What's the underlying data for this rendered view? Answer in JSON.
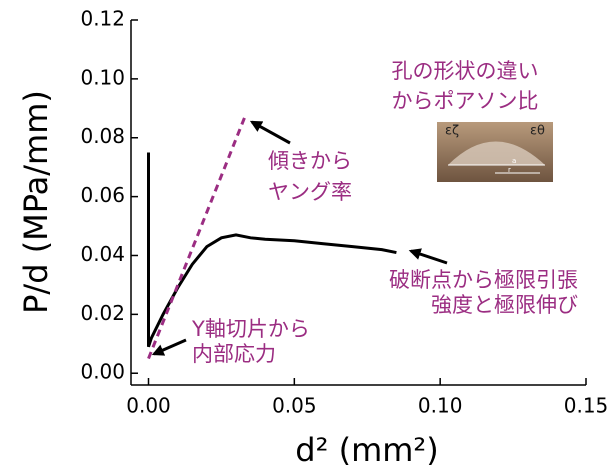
{
  "chart_data": {
    "type": "line",
    "xlabel": "d² (mm²)",
    "ylabel": "P/d (MPa/mm)",
    "xlim": [
      -0.006,
      0.15
    ],
    "ylim": [
      -0.004,
      0.12
    ],
    "xticks": [
      {
        "value": 0,
        "label": "0.00"
      },
      {
        "value": 0.05,
        "label": "0.05"
      },
      {
        "value": 0.1,
        "label": "0.10"
      },
      {
        "value": 0.15,
        "label": "0.15"
      }
    ],
    "yticks": [
      {
        "value": 0,
        "label": "0.00"
      },
      {
        "value": 0.02,
        "label": "0.02"
      },
      {
        "value": 0.04,
        "label": "0.04"
      },
      {
        "value": 0.06,
        "label": "0.06"
      },
      {
        "value": 0.08,
        "label": "0.08"
      },
      {
        "value": 0.1,
        "label": "0.10"
      },
      {
        "value": 0.12,
        "label": "0.12"
      }
    ],
    "grid": false,
    "series": [
      {
        "color": "#000000",
        "dashed": false,
        "x": [
          0,
          0,
          0.001,
          0.005,
          0.01,
          0.015,
          0.02,
          0.025,
          0.03,
          0.035,
          0.04,
          0.05,
          0.06,
          0.07,
          0.08,
          0.085
        ],
        "values": [
          0.075,
          0.009,
          0.012,
          0.02,
          0.029,
          0.037,
          0.043,
          0.046,
          0.047,
          0.046,
          0.0455,
          0.045,
          0.044,
          0.043,
          0.042,
          0.041
        ]
      },
      {
        "color": "#9b2d82",
        "dashed": true,
        "x": [
          0,
          0.033
        ],
        "values": [
          0.005,
          0.087
        ]
      }
    ],
    "annotation_color": "#9b2d82",
    "annotations": [
      {
        "lines": [
          "孔の形状の違い",
          "からポアソン比"
        ]
      },
      {
        "lines": [
          "傾きから",
          "ヤング率"
        ]
      },
      {
        "lines": [
          "破断点から極限引張",
          "強度と極限伸び"
        ]
      },
      {
        "lines": [
          "Y軸切片から",
          "内部応力"
        ]
      }
    ],
    "inset_labels": [
      "εζ",
      "εθ",
      "a",
      "r"
    ]
  }
}
